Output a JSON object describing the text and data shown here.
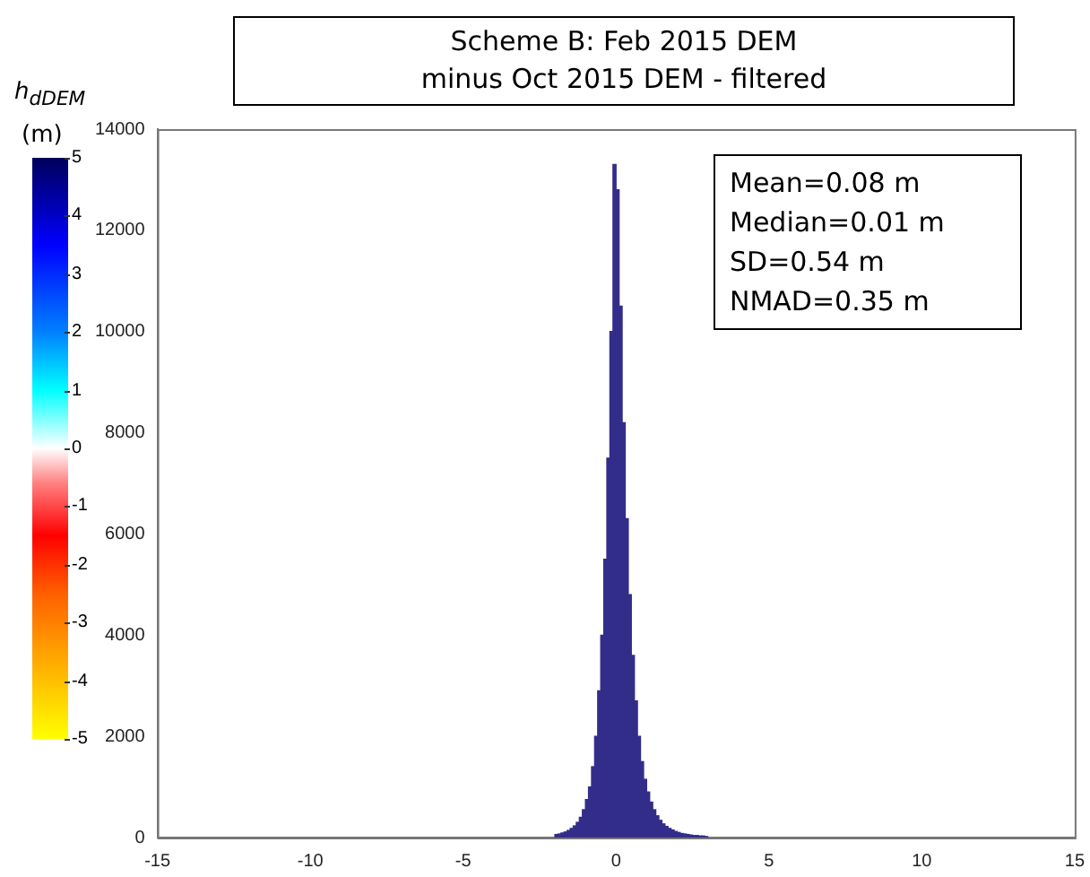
{
  "chart_data": {
    "type": "histogram",
    "title": "Scheme B: Feb 2015 DEM\nminus Oct 2015 DEM - filtered",
    "bins": [
      -2.0,
      -1.9,
      -1.8,
      -1.7,
      -1.6,
      -1.5,
      -1.4,
      -1.3,
      -1.2,
      -1.1,
      -1.0,
      -0.9,
      -0.8,
      -0.7,
      -0.6,
      -0.5,
      -0.4,
      -0.3,
      -0.2,
      -0.1,
      0.0,
      0.1,
      0.2,
      0.3,
      0.4,
      0.5,
      0.6,
      0.7,
      0.8,
      0.9,
      1.0,
      1.1,
      1.2,
      1.3,
      1.4,
      1.5,
      1.6,
      1.7,
      1.8,
      1.9,
      2.0,
      2.1,
      2.2,
      2.3,
      2.4,
      2.5,
      2.6,
      2.7,
      2.8,
      2.9,
      3.0
    ],
    "values": [
      60,
      70,
      90,
      110,
      140,
      180,
      230,
      300,
      400,
      550,
      750,
      1000,
      1400,
      2000,
      2900,
      4000,
      5500,
      7500,
      10000,
      13300,
      12800,
      10500,
      8200,
      6300,
      4800,
      3600,
      2700,
      2000,
      1500,
      1150,
      900,
      700,
      550,
      430,
      340,
      270,
      220,
      180,
      150,
      120,
      100,
      80,
      70,
      60,
      50,
      40,
      40,
      30,
      30,
      20
    ],
    "color": "#332d8a",
    "xlim": [
      -15,
      15
    ],
    "xticks": [
      -15,
      -10,
      -5,
      0,
      5,
      10,
      15
    ],
    "ylim": [
      0,
      14000
    ],
    "yticks": [
      0,
      2000,
      4000,
      6000,
      8000,
      10000,
      12000,
      14000
    ],
    "grid": false,
    "legend": false,
    "clabel": "h$_{dDEM}$ (m)",
    "clim": [
      -5,
      5
    ],
    "cticks": [
      -5,
      -4,
      -3,
      -2,
      -1,
      0,
      1,
      2,
      3,
      4,
      5
    ],
    "annotations": [
      "Mean=0.08 m",
      "Median=0.01 m",
      "SD=0.54 m",
      "NMAD=0.35 m"
    ]
  }
}
